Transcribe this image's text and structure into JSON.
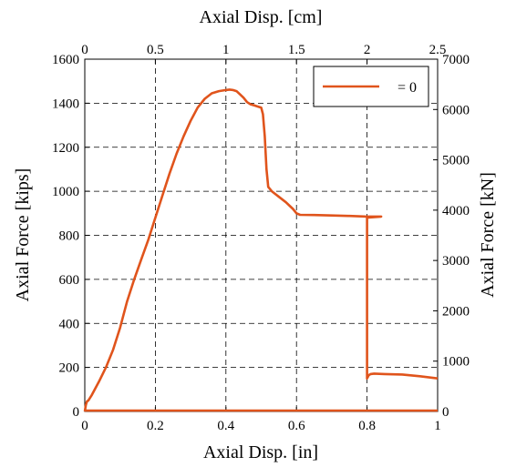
{
  "chart_data": {
    "type": "line",
    "xlabel": "Axial Disp. [in]",
    "x2label": "Axial Disp. [cm]",
    "ylabel": "Axial Force [kips]",
    "y2label": "Axial Force [kN]",
    "xlim": [
      0,
      1
    ],
    "ylim": [
      0,
      1600
    ],
    "x2lim": [
      0,
      2.5
    ],
    "y2lim": [
      0,
      7000
    ],
    "xticks": [
      "0",
      "0.2",
      "0.4",
      "0.6",
      "0.8",
      "1"
    ],
    "yticks": [
      "0",
      "200",
      "400",
      "600",
      "800",
      "1000",
      "1200",
      "1400",
      "1600"
    ],
    "x2ticks": [
      "0",
      "0.5",
      "1",
      "1.5",
      "2",
      "2.5"
    ],
    "y2ticks": [
      "0",
      "1000",
      "2000",
      "3000",
      "4000",
      "5000",
      "6000",
      "7000"
    ],
    "grid": true,
    "legend_position": "top-right",
    "line_color": "#e0541c",
    "series": [
      {
        "name": "= 0",
        "x": [
          0,
          0.003,
          0.006,
          0.01,
          0.02,
          0.04,
          0.06,
          0.08,
          0.1,
          0.12,
          0.14,
          0.16,
          0.18,
          0.2,
          0.22,
          0.24,
          0.26,
          0.28,
          0.3,
          0.32,
          0.34,
          0.36,
          0.38,
          0.4,
          0.41,
          0.42,
          0.43,
          0.44,
          0.45,
          0.46,
          0.47,
          0.48,
          0.49,
          0.5,
          0.505,
          0.51,
          0.515,
          0.52,
          0.53,
          0.55,
          0.57,
          0.59,
          0.6,
          0.61,
          0.65,
          0.7,
          0.75,
          0.8,
          0.84,
          0.8,
          0.8,
          0.805,
          0.81,
          0.82,
          0.85,
          0.9,
          0.95,
          1.0
        ],
        "y": [
          0,
          30,
          45,
          50,
          75,
          135,
          200,
          280,
          380,
          500,
          600,
          690,
          780,
          880,
          980,
          1080,
          1170,
          1250,
          1320,
          1380,
          1420,
          1445,
          1455,
          1460,
          1462,
          1460,
          1455,
          1440,
          1425,
          1405,
          1395,
          1390,
          1385,
          1380,
          1350,
          1250,
          1100,
          1020,
          1000,
          975,
          950,
          920,
          900,
          893,
          892,
          890,
          888,
          885,
          885,
          880,
          150,
          165,
          170,
          172,
          170,
          168,
          160,
          150
        ]
      }
    ]
  }
}
